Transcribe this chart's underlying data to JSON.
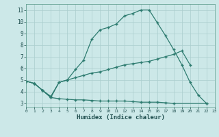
{
  "line1_x": [
    0,
    1,
    2,
    3,
    4,
    5,
    6,
    7,
    8,
    9,
    10,
    11,
    12,
    13,
    14,
    15,
    16,
    17,
    18,
    19,
    20,
    21,
    22
  ],
  "line1_y": [
    4.9,
    4.7,
    4.1,
    3.6,
    4.8,
    5.0,
    5.9,
    6.7,
    8.5,
    9.3,
    9.5,
    9.8,
    10.5,
    10.7,
    11.0,
    11.0,
    9.9,
    8.8,
    7.6,
    6.3,
    4.8,
    3.7,
    3.0
  ],
  "line2_x": [
    0,
    1,
    2,
    3,
    4,
    5,
    6,
    7,
    8,
    9,
    10,
    11,
    12,
    13,
    14,
    15,
    16,
    17,
    18,
    19,
    20
  ],
  "line2_y": [
    4.9,
    4.7,
    4.1,
    3.5,
    4.8,
    5.0,
    5.2,
    5.4,
    5.6,
    5.7,
    5.9,
    6.1,
    6.3,
    6.4,
    6.5,
    6.6,
    6.8,
    7.0,
    7.2,
    7.5,
    6.3
  ],
  "line3_x": [
    0,
    1,
    2,
    3,
    4,
    5,
    6,
    7,
    8,
    9,
    10,
    11,
    12,
    13,
    14,
    15,
    16,
    17,
    18,
    22
  ],
  "line3_y": [
    4.9,
    4.7,
    4.1,
    3.5,
    3.4,
    3.35,
    3.3,
    3.3,
    3.25,
    3.2,
    3.2,
    3.2,
    3.2,
    3.15,
    3.1,
    3.1,
    3.1,
    3.05,
    3.0,
    3.0
  ],
  "color": "#2d7b6f",
  "bg_color": "#cce8e8",
  "grid_color": "#aacece",
  "xlabel": "Humidex (Indice chaleur)",
  "ylabel_ticks": [
    3,
    4,
    5,
    6,
    7,
    8,
    9,
    10,
    11
  ],
  "xticks": [
    0,
    1,
    2,
    3,
    4,
    5,
    6,
    7,
    8,
    9,
    10,
    11,
    12,
    13,
    14,
    15,
    16,
    17,
    18,
    19,
    20,
    21,
    22,
    23
  ],
  "xlim": [
    0,
    23
  ],
  "ylim": [
    2.7,
    11.5
  ],
  "marker": "+",
  "markersize": 3.5,
  "linewidth": 0.9
}
